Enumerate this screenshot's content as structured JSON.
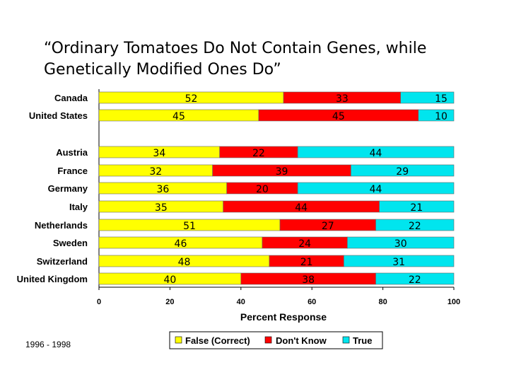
{
  "slide": {
    "title_line1": "“Ordinary Tomatoes Do Not Contain Genes, while",
    "title_line2": "Genetically Modified Ones Do”",
    "footnote": "1996 - 1998"
  },
  "chart_data": {
    "type": "bar",
    "orientation": "horizontal",
    "stacked": true,
    "categories": [
      "Canada",
      "United States",
      "Austria",
      "France",
      "Germany",
      "Italy",
      "Netherlands",
      "Sweden",
      "Switzerland",
      "United Kingdom"
    ],
    "series": [
      {
        "name": "False (Correct)",
        "color": "#ffff00",
        "values": [
          52,
          45,
          34,
          32,
          36,
          35,
          51,
          46,
          48,
          40
        ]
      },
      {
        "name": "Don't Know",
        "color": "#ff0000",
        "values": [
          33,
          45,
          22,
          39,
          20,
          44,
          27,
          24,
          21,
          38
        ]
      },
      {
        "name": "True",
        "color": "#00e5ee",
        "values": [
          15,
          10,
          44,
          29,
          44,
          21,
          22,
          30,
          31,
          22
        ]
      }
    ],
    "xlabel": "Percent Response",
    "xlim": [
      0,
      100
    ],
    "xticks": [
      0,
      20,
      40,
      60,
      80,
      100
    ],
    "legend_position": "bottom",
    "grid": false
  }
}
